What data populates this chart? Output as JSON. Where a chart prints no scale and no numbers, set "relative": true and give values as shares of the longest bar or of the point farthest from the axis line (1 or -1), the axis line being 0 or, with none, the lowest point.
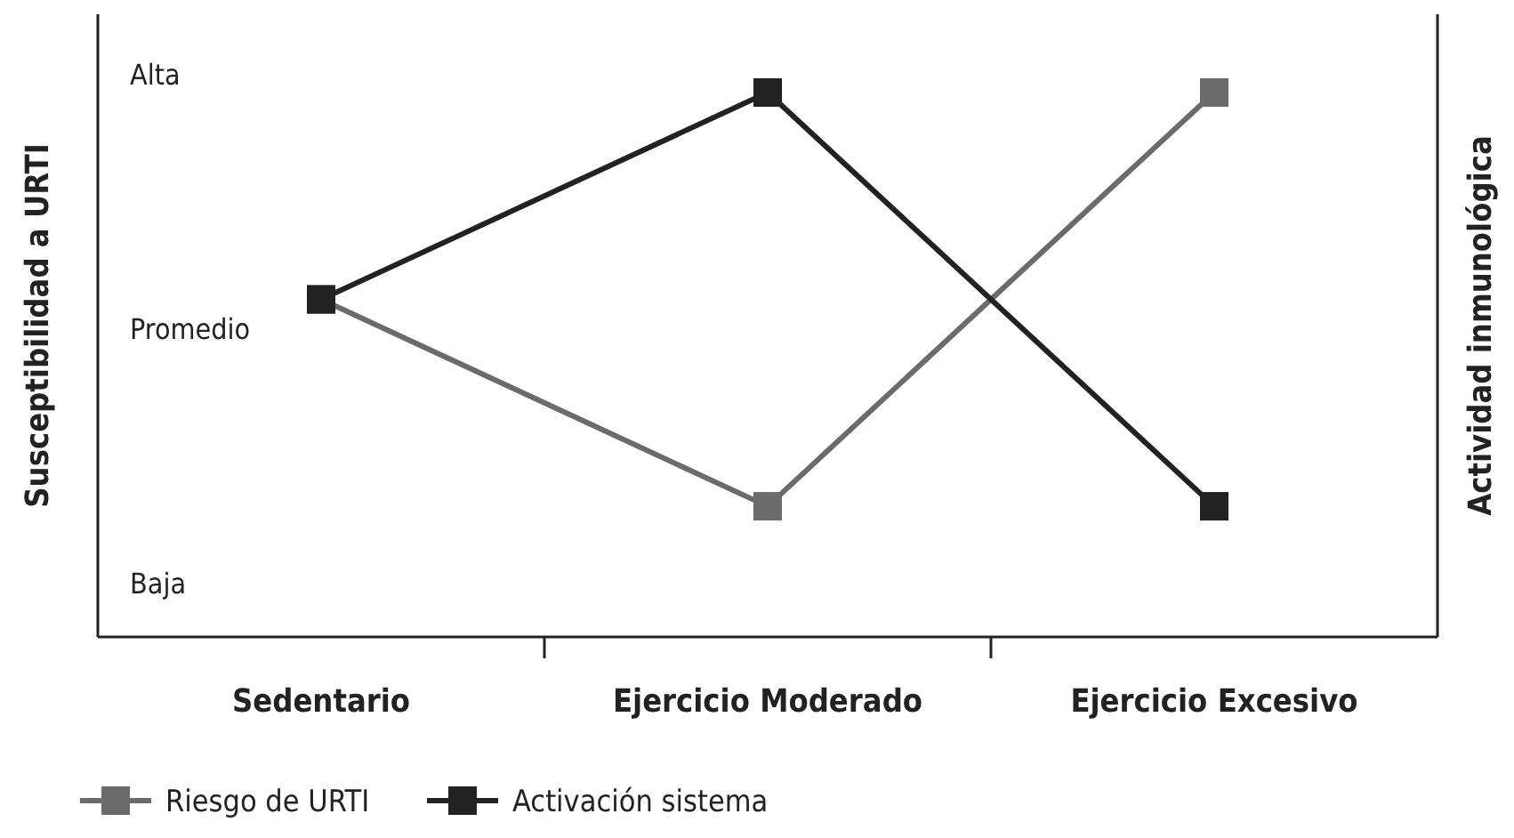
{
  "chart_data": {
    "type": "line",
    "ylabel": "Susceptibilidad a URTI",
    "y2label": "Actividad inmunológica",
    "categories": [
      "Sedentario",
      "Ejercicio Moderado",
      "Ejercicio Excesivo"
    ],
    "relative": true,
    "annotations": [
      "Alta",
      "Promedio",
      "Baja"
    ],
    "series": [
      {
        "name": "Riesgo de URTI",
        "color": "#6b6b6b",
        "values": [
          0.62,
          0.24,
          1
        ]
      },
      {
        "name": "Activación sistema",
        "color": "#222222",
        "values": [
          0.62,
          1,
          0.24
        ]
      }
    ],
    "marker": "square",
    "line_style": "solid",
    "legend": "bottom left"
  }
}
